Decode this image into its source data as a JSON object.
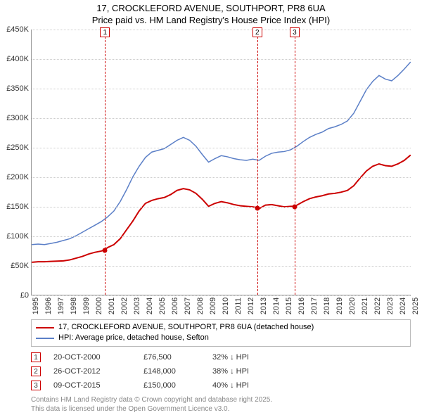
{
  "title": {
    "line1": "17, CROCKLEFORD AVENUE, SOUTHPORT, PR8 6UA",
    "line2": "Price paid vs. HM Land Registry's House Price Index (HPI)"
  },
  "chart": {
    "type": "line",
    "background_color": "#ffffff",
    "grid_color": "#cccccc",
    "axis_color": "#999999",
    "x_min": 1995,
    "x_max": 2025,
    "y_min": 0,
    "y_max": 450000,
    "y_ticks": [
      {
        "v": 0,
        "label": "£0"
      },
      {
        "v": 50000,
        "label": "£50K"
      },
      {
        "v": 100000,
        "label": "£100K"
      },
      {
        "v": 150000,
        "label": "£150K"
      },
      {
        "v": 200000,
        "label": "£200K"
      },
      {
        "v": 250000,
        "label": "£250K"
      },
      {
        "v": 300000,
        "label": "£300K"
      },
      {
        "v": 350000,
        "label": "£350K"
      },
      {
        "v": 400000,
        "label": "£400K"
      },
      {
        "v": 450000,
        "label": "£450K"
      }
    ],
    "x_ticks": [
      1995,
      1996,
      1997,
      1998,
      1999,
      2000,
      2001,
      2002,
      2003,
      2004,
      2005,
      2006,
      2007,
      2008,
      2009,
      2010,
      2011,
      2012,
      2013,
      2014,
      2015,
      2016,
      2017,
      2018,
      2019,
      2020,
      2021,
      2022,
      2023,
      2024,
      2025
    ],
    "series": [
      {
        "name": "price-paid",
        "label": "17, CROCKLEFORD AVENUE, SOUTHPORT, PR8 6UA (detached house)",
        "color": "#cc0000",
        "line_width": 2,
        "data": [
          [
            1995,
            55000
          ],
          [
            1995.5,
            56000
          ],
          [
            1996,
            56000
          ],
          [
            1996.5,
            56500
          ],
          [
            1997,
            57000
          ],
          [
            1997.5,
            57500
          ],
          [
            1998,
            59000
          ],
          [
            1998.5,
            62000
          ],
          [
            1999,
            65000
          ],
          [
            1999.5,
            69000
          ],
          [
            2000,
            72000
          ],
          [
            2000.5,
            74000
          ],
          [
            2000.8,
            76500
          ],
          [
            2001,
            80000
          ],
          [
            2001.5,
            85000
          ],
          [
            2002,
            95000
          ],
          [
            2002.5,
            110000
          ],
          [
            2003,
            125000
          ],
          [
            2003.5,
            142000
          ],
          [
            2004,
            155000
          ],
          [
            2004.5,
            160000
          ],
          [
            2005,
            163000
          ],
          [
            2005.5,
            165000
          ],
          [
            2006,
            170000
          ],
          [
            2006.5,
            177000
          ],
          [
            2007,
            180000
          ],
          [
            2007.5,
            178000
          ],
          [
            2008,
            172000
          ],
          [
            2008.5,
            162000
          ],
          [
            2009,
            150000
          ],
          [
            2009.5,
            155000
          ],
          [
            2010,
            158000
          ],
          [
            2010.5,
            156000
          ],
          [
            2011,
            153000
          ],
          [
            2011.5,
            151000
          ],
          [
            2012,
            150000
          ],
          [
            2012.5,
            149000
          ],
          [
            2012.82,
            148000
          ],
          [
            2013,
            146000
          ],
          [
            2013.5,
            152000
          ],
          [
            2014,
            153000
          ],
          [
            2014.5,
            151000
          ],
          [
            2015,
            149000
          ],
          [
            2015.5,
            150000
          ],
          [
            2015.77,
            150000
          ],
          [
            2016,
            152000
          ],
          [
            2016.5,
            158000
          ],
          [
            2017,
            163000
          ],
          [
            2017.5,
            166000
          ],
          [
            2018,
            168000
          ],
          [
            2018.5,
            171000
          ],
          [
            2019,
            172000
          ],
          [
            2019.5,
            174000
          ],
          [
            2020,
            177000
          ],
          [
            2020.5,
            185000
          ],
          [
            2021,
            198000
          ],
          [
            2021.5,
            210000
          ],
          [
            2022,
            218000
          ],
          [
            2022.5,
            222000
          ],
          [
            2023,
            219000
          ],
          [
            2023.5,
            218000
          ],
          [
            2024,
            222000
          ],
          [
            2024.5,
            228000
          ],
          [
            2025,
            237000
          ]
        ]
      },
      {
        "name": "hpi",
        "label": "HPI: Average price, detached house, Sefton",
        "color": "#5b7fc7",
        "line_width": 1.5,
        "data": [
          [
            1995,
            85000
          ],
          [
            1995.5,
            86000
          ],
          [
            1996,
            85000
          ],
          [
            1996.5,
            87000
          ],
          [
            1997,
            89000
          ],
          [
            1997.5,
            92000
          ],
          [
            1998,
            95000
          ],
          [
            1998.5,
            100000
          ],
          [
            1999,
            106000
          ],
          [
            1999.5,
            112000
          ],
          [
            2000,
            118000
          ],
          [
            2000.5,
            124000
          ],
          [
            2001,
            132000
          ],
          [
            2001.5,
            142000
          ],
          [
            2002,
            158000
          ],
          [
            2002.5,
            178000
          ],
          [
            2003,
            200000
          ],
          [
            2003.5,
            218000
          ],
          [
            2004,
            233000
          ],
          [
            2004.5,
            242000
          ],
          [
            2005,
            245000
          ],
          [
            2005.5,
            248000
          ],
          [
            2006,
            255000
          ],
          [
            2006.5,
            262000
          ],
          [
            2007,
            267000
          ],
          [
            2007.5,
            262000
          ],
          [
            2008,
            252000
          ],
          [
            2008.5,
            238000
          ],
          [
            2009,
            225000
          ],
          [
            2009.5,
            231000
          ],
          [
            2010,
            236000
          ],
          [
            2010.5,
            234000
          ],
          [
            2011,
            231000
          ],
          [
            2011.5,
            229000
          ],
          [
            2012,
            228000
          ],
          [
            2012.5,
            230000
          ],
          [
            2013,
            228000
          ],
          [
            2013.5,
            235000
          ],
          [
            2014,
            240000
          ],
          [
            2014.5,
            242000
          ],
          [
            2015,
            243000
          ],
          [
            2015.5,
            246000
          ],
          [
            2016,
            252000
          ],
          [
            2016.5,
            260000
          ],
          [
            2017,
            267000
          ],
          [
            2017.5,
            272000
          ],
          [
            2018,
            276000
          ],
          [
            2018.5,
            282000
          ],
          [
            2019,
            285000
          ],
          [
            2019.5,
            289000
          ],
          [
            2020,
            295000
          ],
          [
            2020.5,
            308000
          ],
          [
            2021,
            328000
          ],
          [
            2021.5,
            348000
          ],
          [
            2022,
            362000
          ],
          [
            2022.5,
            372000
          ],
          [
            2023,
            366000
          ],
          [
            2023.5,
            363000
          ],
          [
            2024,
            372000
          ],
          [
            2024.5,
            383000
          ],
          [
            2025,
            395000
          ]
        ]
      }
    ],
    "markers": [
      {
        "idx": "1",
        "x": 2000.8,
        "color": "#cc0000"
      },
      {
        "idx": "2",
        "x": 2012.82,
        "color": "#cc0000"
      },
      {
        "idx": "3",
        "x": 2015.77,
        "color": "#cc0000"
      }
    ],
    "sale_points": [
      {
        "x": 2000.8,
        "y": 76500,
        "color": "#cc0000"
      },
      {
        "x": 2012.82,
        "y": 148000,
        "color": "#cc0000"
      },
      {
        "x": 2015.77,
        "y": 150000,
        "color": "#cc0000"
      }
    ]
  },
  "legend": {
    "rows": [
      {
        "color": "#cc0000",
        "label": "17, CROCKLEFORD AVENUE, SOUTHPORT, PR8 6UA (detached house)"
      },
      {
        "color": "#5b7fc7",
        "label": "HPI: Average price, detached house, Sefton"
      }
    ]
  },
  "sales": [
    {
      "idx": "1",
      "color": "#cc0000",
      "date": "20-OCT-2000",
      "price": "£76,500",
      "diff": "32% ↓ HPI"
    },
    {
      "idx": "2",
      "color": "#cc0000",
      "date": "26-OCT-2012",
      "price": "£148,000",
      "diff": "38% ↓ HPI"
    },
    {
      "idx": "3",
      "color": "#cc0000",
      "date": "09-OCT-2015",
      "price": "£150,000",
      "diff": "40% ↓ HPI"
    }
  ],
  "footer": {
    "line1": "Contains HM Land Registry data © Crown copyright and database right 2025.",
    "line2": "This data is licensed under the Open Government Licence v3.0."
  }
}
